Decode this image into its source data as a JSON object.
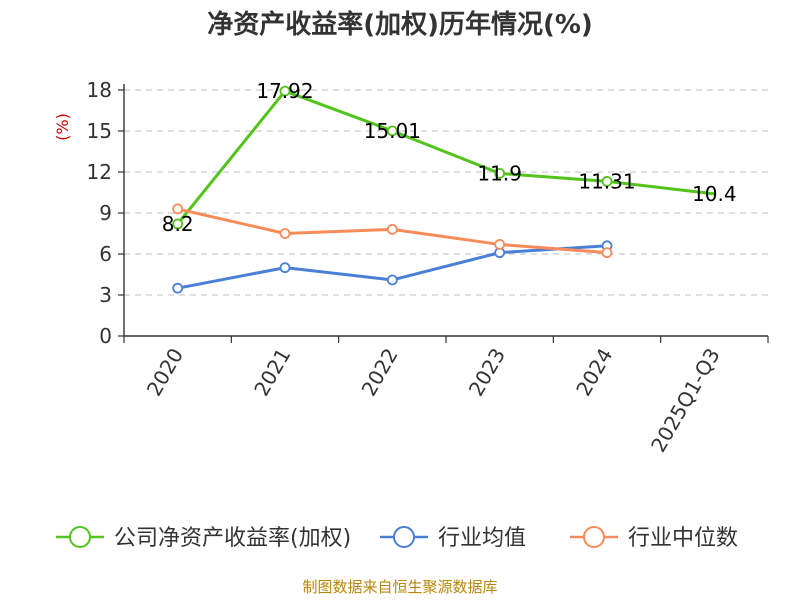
{
  "chart_data": {
    "type": "line",
    "title": "净资产收益率(加权)历年情况(%)",
    "ylabel": "(%)",
    "categories": [
      "2020",
      "2021",
      "2022",
      "2023",
      "2024",
      "2025Q1-Q3"
    ],
    "ylim": [
      0,
      18
    ],
    "yticks": [
      0,
      3,
      6,
      9,
      12,
      15,
      18
    ],
    "ytick_labels": [
      "0",
      "3",
      "6",
      "9",
      "12",
      "15",
      "18"
    ],
    "grid": true,
    "legend_position": "bottom",
    "series": [
      {
        "name": "公司净资产收益率(加权)",
        "color": "#52c41a",
        "values": [
          8.2,
          17.92,
          15.01,
          11.9,
          11.31,
          10.4
        ],
        "labels": [
          "8.2",
          "17.92",
          "15.01",
          "11.9",
          "11.31",
          "10.4"
        ]
      },
      {
        "name": "行业均值",
        "color": "#4a7fd6",
        "values": [
          3.5,
          5.0,
          4.1,
          6.1,
          6.6,
          null
        ]
      },
      {
        "name": "行业中位数",
        "color": "#f78c5a",
        "values": [
          9.3,
          7.5,
          7.8,
          6.7,
          6.1,
          null
        ]
      }
    ]
  },
  "source": "制图数据来自恒生聚源数据库"
}
